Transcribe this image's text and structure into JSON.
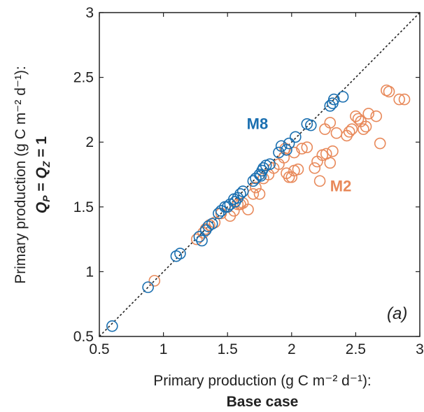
{
  "chart_data": {
    "type": "scatter",
    "title": "",
    "xlabel": "Primary production (g C m⁻² d⁻¹):",
    "xlabel_line2": "Base case",
    "ylabel": "Primary production (g C m⁻² d⁻¹):",
    "ylabel_line2": "Q",
    "ylabel_sub_p": "P",
    "ylabel_eq": " = ",
    "ylabel_q2": "Q",
    "ylabel_sub_z": "Z",
    "ylabel_eq1": " = 1",
    "xlim": [
      0.5,
      3
    ],
    "ylim": [
      0.5,
      3
    ],
    "x_ticks": [
      0.5,
      1,
      1.5,
      2,
      2.5,
      3
    ],
    "x_tick_labels": [
      "0.5",
      "1",
      "1.5",
      "2",
      "2.5",
      "3"
    ],
    "y_ticks": [
      0.5,
      1,
      1.5,
      2,
      2.5,
      3
    ],
    "y_tick_labels": [
      "0.5",
      "1",
      "1.5",
      "2",
      "2.5",
      "3"
    ],
    "grid": false,
    "panel_label": "(a)",
    "reference_line": "1:1",
    "series_labels": [
      {
        "text": "M8",
        "x": 1.65,
        "y": 2.1,
        "color": "#1a6fb0"
      },
      {
        "text": "M2",
        "x": 2.3,
        "y": 1.62,
        "color": "#e8895a"
      }
    ],
    "series": [
      {
        "name": "M2",
        "color": "#e8895a",
        "points": [
          [
            0.93,
            0.93
          ],
          [
            1.26,
            1.25
          ],
          [
            1.31,
            1.3
          ],
          [
            1.33,
            1.33
          ],
          [
            1.36,
            1.36
          ],
          [
            1.4,
            1.38
          ],
          [
            1.45,
            1.45
          ],
          [
            1.52,
            1.43
          ],
          [
            1.55,
            1.47
          ],
          [
            1.58,
            1.52
          ],
          [
            1.62,
            1.53
          ],
          [
            1.66,
            1.48
          ],
          [
            1.7,
            1.6
          ],
          [
            1.72,
            1.65
          ],
          [
            1.75,
            1.6
          ],
          [
            1.78,
            1.72
          ],
          [
            1.82,
            1.75
          ],
          [
            1.86,
            1.8
          ],
          [
            1.9,
            1.83
          ],
          [
            1.94,
            1.88
          ],
          [
            1.96,
            1.76
          ],
          [
            1.98,
            1.73
          ],
          [
            2.0,
            1.73
          ],
          [
            2.02,
            1.78
          ],
          [
            2.05,
            1.79
          ],
          [
            2.08,
            1.95
          ],
          [
            2.12,
            1.96
          ],
          [
            2.18,
            1.8
          ],
          [
            2.2,
            1.85
          ],
          [
            2.24,
            1.9
          ],
          [
            2.27,
            1.91
          ],
          [
            2.3,
            1.84
          ],
          [
            2.32,
            1.93
          ],
          [
            2.22,
            1.7
          ],
          [
            2.02,
            1.92
          ],
          [
            2.26,
            2.1
          ],
          [
            2.3,
            2.15
          ],
          [
            2.35,
            2.07
          ],
          [
            2.43,
            2.05
          ],
          [
            2.45,
            2.08
          ],
          [
            2.47,
            2.1
          ],
          [
            2.5,
            2.2
          ],
          [
            2.52,
            2.18
          ],
          [
            2.54,
            2.16
          ],
          [
            2.56,
            2.1
          ],
          [
            2.58,
            2.12
          ],
          [
            2.6,
            2.22
          ],
          [
            2.66,
            2.2
          ],
          [
            2.69,
            1.99
          ],
          [
            2.74,
            2.4
          ],
          [
            2.76,
            2.39
          ],
          [
            2.84,
            2.33
          ],
          [
            2.88,
            2.33
          ],
          [
            1.95,
            1.95
          ],
          [
            1.6,
            1.52
          ]
        ]
      },
      {
        "name": "M8",
        "color": "#1a6fb0",
        "points": [
          [
            0.6,
            0.58
          ],
          [
            0.88,
            0.88
          ],
          [
            1.1,
            1.12
          ],
          [
            1.13,
            1.14
          ],
          [
            1.28,
            1.27
          ],
          [
            1.3,
            1.24
          ],
          [
            1.33,
            1.32
          ],
          [
            1.35,
            1.35
          ],
          [
            1.38,
            1.37
          ],
          [
            1.43,
            1.45
          ],
          [
            1.45,
            1.47
          ],
          [
            1.5,
            1.5
          ],
          [
            1.52,
            1.52
          ],
          [
            1.55,
            1.56
          ],
          [
            1.58,
            1.57
          ],
          [
            1.6,
            1.6
          ],
          [
            1.62,
            1.62
          ],
          [
            1.7,
            1.7
          ],
          [
            1.72,
            1.72
          ],
          [
            1.75,
            1.75
          ],
          [
            1.77,
            1.78
          ],
          [
            1.78,
            1.8
          ],
          [
            1.8,
            1.82
          ],
          [
            1.83,
            1.83
          ],
          [
            1.9,
            1.92
          ],
          [
            1.92,
            1.97
          ],
          [
            1.96,
            1.94
          ],
          [
            1.98,
            1.99
          ],
          [
            2.03,
            2.04
          ],
          [
            2.12,
            2.14
          ],
          [
            2.15,
            2.13
          ],
          [
            2.3,
            2.28
          ],
          [
            2.32,
            2.3
          ],
          [
            2.33,
            2.33
          ],
          [
            2.4,
            2.35
          ],
          [
            1.76,
            1.74
          ],
          [
            1.56,
            1.54
          ],
          [
            1.48,
            1.5
          ]
        ]
      }
    ]
  }
}
